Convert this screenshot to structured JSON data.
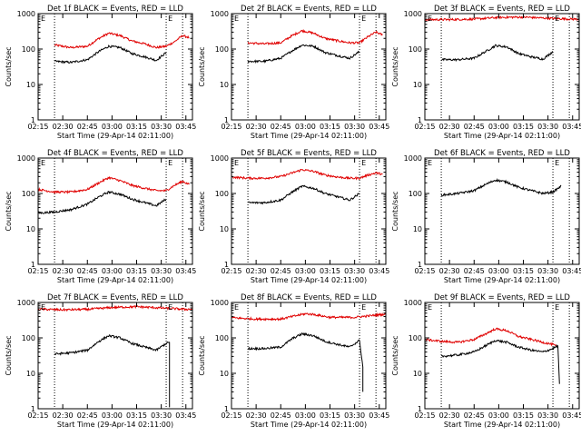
{
  "chart_data": [
    {
      "type": "line",
      "title": "Det 1f BLACK = Events, RED = LLD",
      "ylabel": "Counts/sec",
      "xlabel": "Start Time (29-Apr-14 02:11:00)",
      "xticks": [
        "02:15",
        "02:30",
        "02:45",
        "03:00",
        "03:15",
        "03:30",
        "03:45"
      ],
      "yticks": [
        "1",
        "10",
        "100",
        "1000"
      ],
      "ylog": true,
      "xlim": [
        "02:15",
        "03:49"
      ],
      "ylim": [
        1,
        1000
      ],
      "vlines": [
        "02:25",
        "03:33",
        "03:43"
      ],
      "markers": [
        "E",
        "E"
      ],
      "series": [
        {
          "color": "#e00000",
          "x": [
            "02:25",
            "02:35",
            "02:45",
            "02:52",
            "02:58",
            "03:05",
            "03:12",
            "03:20",
            "03:27",
            "03:33",
            "03:38",
            "03:43",
            "03:47"
          ],
          "y": [
            130,
            110,
            120,
            200,
            280,
            240,
            170,
            140,
            110,
            120,
            160,
            240,
            210
          ]
        },
        {
          "color": "#000000",
          "x": [
            "02:25",
            "02:35",
            "02:45",
            "02:52",
            "02:58",
            "03:05",
            "03:12",
            "03:20",
            "03:27",
            "03:33"
          ],
          "y": [
            45,
            42,
            50,
            85,
            120,
            110,
            75,
            60,
            48,
            80
          ]
        }
      ]
    },
    {
      "type": "line",
      "title": "Det 2f BLACK = Events, RED = LLD",
      "ylabel": "Counts/sec",
      "xlabel": "Start Time (29-Apr-14 02:11:00)",
      "xticks": [
        "02:15",
        "02:30",
        "02:45",
        "03:00",
        "03:15",
        "03:30",
        "03:45"
      ],
      "yticks": [
        "1",
        "10",
        "100",
        "1000"
      ],
      "ylog": true,
      "xlim": [
        "02:15",
        "03:49"
      ],
      "ylim": [
        1,
        1000
      ],
      "vlines": [
        "02:25",
        "03:33",
        "03:43"
      ],
      "markers": [
        "E",
        "E"
      ],
      "series": [
        {
          "color": "#e00000",
          "x": [
            "02:25",
            "02:35",
            "02:45",
            "02:52",
            "02:58",
            "03:05",
            "03:12",
            "03:20",
            "03:27",
            "03:33",
            "03:38",
            "03:43",
            "03:47"
          ],
          "y": [
            150,
            140,
            150,
            240,
            330,
            280,
            200,
            170,
            150,
            150,
            220,
            300,
            250
          ]
        },
        {
          "color": "#000000",
          "x": [
            "02:25",
            "02:35",
            "02:45",
            "02:52",
            "02:58",
            "03:05",
            "03:12",
            "03:20",
            "03:27",
            "03:33"
          ],
          "y": [
            45,
            45,
            55,
            90,
            130,
            120,
            80,
            65,
            55,
            85
          ]
        }
      ]
    },
    {
      "type": "line",
      "title": "Det 3f BLACK = Events, RED = LLD",
      "ylabel": "Counts/sec",
      "xlabel": "Start Time (29-Apr-14 02:11:00)",
      "xticks": [
        "02:15",
        "02:30",
        "02:45",
        "03:00",
        "03:15",
        "03:30",
        "03:45"
      ],
      "yticks": [
        "1",
        "10",
        "100",
        "1000"
      ],
      "ylog": true,
      "xlim": [
        "02:15",
        "03:49"
      ],
      "ylim": [
        1,
        1000
      ],
      "vlines": [
        "02:25",
        "03:33",
        "03:43"
      ],
      "markers": [
        "E",
        "E"
      ],
      "series": [
        {
          "color": "#e00000",
          "x": [
            "02:15",
            "02:30",
            "02:45",
            "03:00",
            "03:15",
            "03:30",
            "03:45",
            "03:49"
          ],
          "y": [
            680,
            680,
            700,
            780,
            800,
            740,
            700,
            700
          ]
        },
        {
          "color": "#000000",
          "x": [
            "02:25",
            "02:35",
            "02:45",
            "02:52",
            "02:58",
            "03:05",
            "03:12",
            "03:20",
            "03:27",
            "03:33"
          ],
          "y": [
            50,
            50,
            55,
            85,
            125,
            115,
            75,
            60,
            52,
            85
          ]
        }
      ]
    },
    {
      "type": "line",
      "title": "Det 4f BLACK = Events, RED = LLD",
      "ylabel": "Counts/sec",
      "xlabel": "Start Time (29-Apr-14 02:11:00)",
      "xticks": [
        "02:15",
        "02:30",
        "02:45",
        "03:00",
        "03:15",
        "03:30",
        "03:45"
      ],
      "yticks": [
        "1",
        "10",
        "100",
        "1000"
      ],
      "ylog": true,
      "xlim": [
        "02:15",
        "03:49"
      ],
      "ylim": [
        1,
        1000
      ],
      "vlines": [
        "02:25",
        "03:33",
        "03:43"
      ],
      "markers": [
        "E",
        "E"
      ],
      "series": [
        {
          "color": "#e00000",
          "x": [
            "02:15",
            "02:25",
            "02:35",
            "02:45",
            "02:52",
            "02:58",
            "03:05",
            "03:12",
            "03:20",
            "03:27",
            "03:33",
            "03:38",
            "03:43",
            "03:47"
          ],
          "y": [
            130,
            110,
            110,
            130,
            200,
            280,
            230,
            170,
            140,
            120,
            120,
            170,
            220,
            180
          ]
        },
        {
          "color": "#000000",
          "x": [
            "02:15",
            "02:25",
            "02:35",
            "02:45",
            "02:52",
            "02:58",
            "03:05",
            "03:12",
            "03:20",
            "03:27",
            "03:33"
          ],
          "y": [
            28,
            30,
            35,
            50,
            80,
            110,
            95,
            70,
            55,
            45,
            70
          ]
        }
      ]
    },
    {
      "type": "line",
      "title": "Det 5f BLACK = Events, RED = LLD",
      "ylabel": "Counts/sec",
      "xlabel": "Start Time (29-Apr-14 02:11:00)",
      "xticks": [
        "02:15",
        "02:30",
        "02:45",
        "03:00",
        "03:15",
        "03:30",
        "03:45"
      ],
      "yticks": [
        "1",
        "10",
        "100",
        "1000"
      ],
      "ylog": true,
      "xlim": [
        "02:15",
        "03:49"
      ],
      "ylim": [
        1,
        1000
      ],
      "vlines": [
        "02:25",
        "03:33",
        "03:43"
      ],
      "markers": [
        "E",
        "E"
      ],
      "series": [
        {
          "color": "#e00000",
          "x": [
            "02:15",
            "02:25",
            "02:35",
            "02:45",
            "02:52",
            "02:58",
            "03:05",
            "03:12",
            "03:20",
            "03:27",
            "03:33",
            "03:38",
            "03:43",
            "03:47"
          ],
          "y": [
            290,
            270,
            270,
            300,
            380,
            470,
            420,
            330,
            290,
            270,
            270,
            330,
            380,
            350
          ]
        },
        {
          "color": "#000000",
          "x": [
            "02:25",
            "02:35",
            "02:45",
            "02:52",
            "02:58",
            "03:05",
            "03:12",
            "03:20",
            "03:27",
            "03:33"
          ],
          "y": [
            55,
            55,
            65,
            110,
            160,
            140,
            100,
            80,
            65,
            100
          ]
        }
      ]
    },
    {
      "type": "line",
      "title": "Det 6f BLACK = Events, RED = LLD",
      "ylabel": "Counts/sec",
      "xlabel": "Start Time (29-Apr-14 02:11:00)",
      "xticks": [
        "02:15",
        "02:30",
        "02:45",
        "03:00",
        "03:15",
        "03:30",
        "03:45"
      ],
      "yticks": [
        "1",
        "10",
        "100",
        "1000"
      ],
      "ylog": true,
      "xlim": [
        "02:15",
        "03:49"
      ],
      "ylim": [
        1,
        1000
      ],
      "vlines": [
        "02:25",
        "03:33",
        "03:43"
      ],
      "markers": [
        "E",
        "E"
      ],
      "series": [
        {
          "color": "#000000",
          "x": [
            "02:25",
            "02:35",
            "02:45",
            "02:52",
            "02:58",
            "03:05",
            "03:12",
            "03:20",
            "03:27",
            "03:33",
            "03:38"
          ],
          "y": [
            90,
            100,
            120,
            180,
            240,
            210,
            150,
            120,
            100,
            110,
            160
          ]
        }
      ]
    },
    {
      "type": "line",
      "title": "Det 7f BLACK = Events, RED = LLD",
      "ylabel": "Counts/sec",
      "xlabel": "Start Time (29-Apr-14 02:11:00)",
      "xticks": [
        "02:15",
        "02:30",
        "02:45",
        "03:00",
        "03:15",
        "03:30",
        "03:45"
      ],
      "yticks": [
        "1",
        "10",
        "100",
        "1000"
      ],
      "ylog": true,
      "xlim": [
        "02:15",
        "03:49"
      ],
      "ylim": [
        1,
        1000
      ],
      "vlines": [
        "02:25",
        "03:33",
        "03:43"
      ],
      "markers": [
        "E",
        "E"
      ],
      "series": [
        {
          "color": "#e00000",
          "x": [
            "02:15",
            "02:30",
            "02:45",
            "03:00",
            "03:15",
            "03:30",
            "03:45",
            "03:49"
          ],
          "y": [
            650,
            620,
            640,
            720,
            760,
            700,
            640,
            650
          ]
        },
        {
          "color": "#000000",
          "x": [
            "02:25",
            "02:35",
            "02:45",
            "02:52",
            "02:58",
            "03:05",
            "03:12",
            "03:20",
            "03:27",
            "03:33",
            "03:35",
            "03:35"
          ],
          "y": [
            35,
            38,
            45,
            80,
            115,
            100,
            70,
            55,
            45,
            70,
            75,
            1.1
          ]
        }
      ]
    },
    {
      "type": "line",
      "title": "Det 8f BLACK = Events, RED = LLD",
      "ylabel": "Counts/sec",
      "xlabel": "Start Time (29-Apr-14 02:11:00)",
      "xticks": [
        "02:15",
        "02:30",
        "02:45",
        "03:00",
        "03:15",
        "03:30",
        "03:45"
      ],
      "yticks": [
        "1",
        "10",
        "100",
        "1000"
      ],
      "ylog": true,
      "xlim": [
        "02:15",
        "03:49"
      ],
      "ylim": [
        1,
        1000
      ],
      "vlines": [
        "02:25",
        "03:33",
        "03:43"
      ],
      "markers": [
        "E",
        "E"
      ],
      "series": [
        {
          "color": "#e00000",
          "x": [
            "02:15",
            "02:30",
            "02:45",
            "02:55",
            "03:00",
            "03:05",
            "03:15",
            "03:30",
            "03:45",
            "03:49"
          ],
          "y": [
            370,
            340,
            340,
            430,
            480,
            460,
            380,
            380,
            450,
            470
          ]
        },
        {
          "color": "#000000",
          "x": [
            "02:25",
            "02:35",
            "02:45",
            "02:52",
            "02:58",
            "03:05",
            "03:12",
            "03:20",
            "03:27",
            "03:33",
            "03:35",
            "03:35"
          ],
          "y": [
            50,
            50,
            55,
            95,
            130,
            115,
            80,
            65,
            55,
            85,
            15,
            3
          ]
        }
      ]
    },
    {
      "type": "line",
      "title": "Det 9f BLACK = Events, RED = LLD",
      "ylabel": "Counts/sec",
      "xlabel": "Start Time (29-Apr-14 02:11:00)",
      "xticks": [
        "02:15",
        "02:30",
        "02:45",
        "03:00",
        "03:15",
        "03:30",
        "03:45"
      ],
      "yticks": [
        "1",
        "10",
        "100",
        "1000"
      ],
      "ylog": true,
      "xlim": [
        "02:15",
        "03:49"
      ],
      "ylim": [
        1,
        1000
      ],
      "vlines": [
        "02:25",
        "03:33",
        "03:43"
      ],
      "markers": [
        "E",
        "E"
      ],
      "series": [
        {
          "color": "#e00000",
          "x": [
            "02:15",
            "02:25",
            "02:35",
            "02:45",
            "02:52",
            "02:58",
            "03:05",
            "03:12",
            "03:20",
            "03:27",
            "03:33",
            "03:36"
          ],
          "y": [
            90,
            80,
            75,
            90,
            130,
            180,
            160,
            110,
            90,
            75,
            65,
            55
          ]
        },
        {
          "color": "#000000",
          "x": [
            "02:25",
            "02:35",
            "02:45",
            "02:52",
            "02:58",
            "03:05",
            "03:12",
            "03:20",
            "03:27",
            "03:33",
            "03:36",
            "03:37"
          ],
          "y": [
            30,
            33,
            40,
            60,
            85,
            75,
            55,
            45,
            40,
            50,
            60,
            5
          ]
        }
      ]
    }
  ]
}
